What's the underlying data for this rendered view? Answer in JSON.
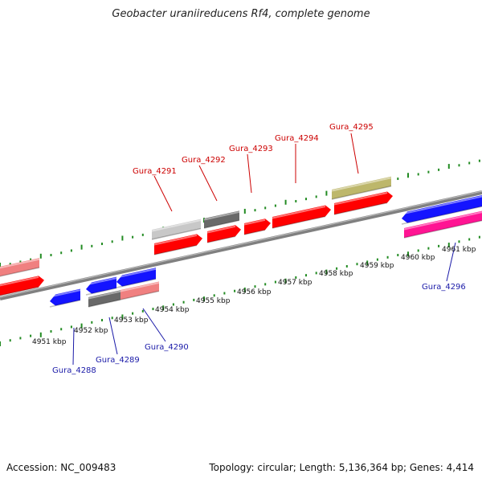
{
  "title": "Geobacter uraniireducens Rf4, complete genome",
  "footer": {
    "accession": "Accession: NC_009483",
    "topology": "Topology: circular; Length: 5,136,364 bp; Genes: 4,414"
  },
  "scale_labels": [
    "4951 kbp",
    "4952 kbp",
    "4953 kbp",
    "4954 kbp",
    "4955 kbp",
    "4956 kbp",
    "4957 kbp",
    "4958 kbp",
    "4959 kbp",
    "4960 kbp",
    "4961 kbp"
  ],
  "genes_top": [
    "Gura_4291",
    "Gura_4292",
    "Gura_4293",
    "Gura_4294",
    "Gura_4295"
  ],
  "genes_bottom": [
    "Gura_4288",
    "Gura_4289",
    "Gura_4290",
    "Gura_4296"
  ],
  "colors": {
    "cds": "#ff0000",
    "cds_light": "#f08080",
    "cds_reverse": "#1414ff",
    "rna": "#ff1493",
    "other_gray": "#696969",
    "other_light": "#c8c8c8",
    "other_khaki": "#bdb76b",
    "top_label": "#cc0000",
    "bottom_label": "#1a1aa8",
    "tick": "#228b22",
    "backbone": "#808080"
  }
}
